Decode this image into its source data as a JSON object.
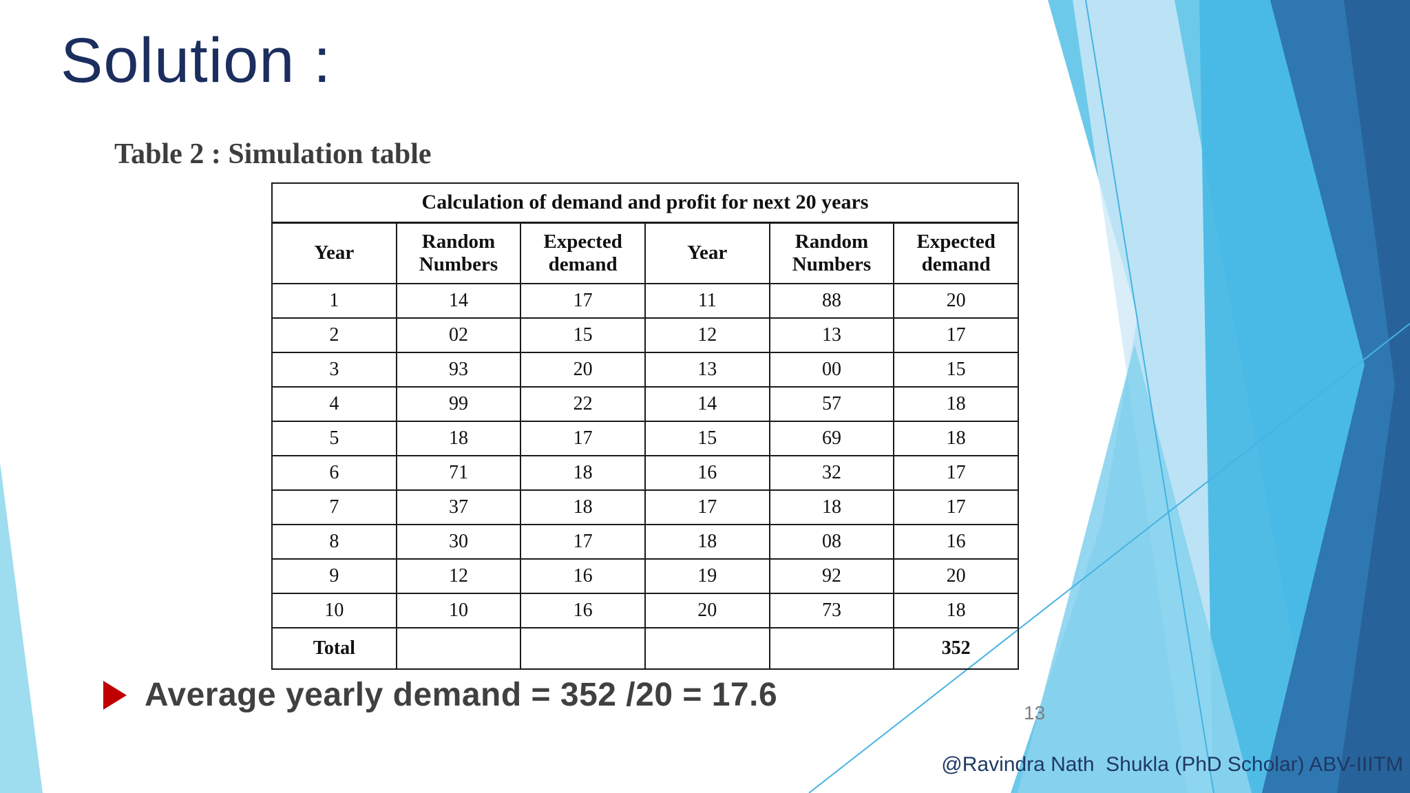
{
  "slide": {
    "title": "Solution :",
    "table_caption": "Table 2 : Simulation table",
    "bullet": {
      "icon": "right-triangle-bullet",
      "text": "Average yearly demand = 352 /20 = 17.6"
    },
    "page_number": "13",
    "footer": "@Ravindra Nath  Shukla (PhD Scholar) ABV-IIITM"
  },
  "table": {
    "title": "Calculation of demand and profit for next 20 years",
    "headers": [
      "Year",
      "Random Numbers",
      "Expected demand",
      "Year",
      "Random Numbers",
      "Expected demand"
    ],
    "rows": [
      [
        "1",
        "14",
        "17",
        "11",
        "88",
        "20"
      ],
      [
        "2",
        "02",
        "15",
        "12",
        "13",
        "17"
      ],
      [
        "3",
        "93",
        "20",
        "13",
        "00",
        "15"
      ],
      [
        "4",
        "99",
        "22",
        "14",
        "57",
        "18"
      ],
      [
        "5",
        "18",
        "17",
        "15",
        "69",
        "18"
      ],
      [
        "6",
        "71",
        "18",
        "16",
        "32",
        "17"
      ],
      [
        "7",
        "37",
        "18",
        "17",
        "18",
        "17"
      ],
      [
        "8",
        "30",
        "17",
        "18",
        "08",
        "16"
      ],
      [
        "9",
        "12",
        "16",
        "19",
        "92",
        "20"
      ],
      [
        "10",
        "10",
        "16",
        "20",
        "73",
        "18"
      ],
      [
        "Total",
        "",
        "",
        "",
        "",
        "352"
      ]
    ]
  },
  "colors": {
    "title_navy": "#1b2e5e",
    "footer_navy": "#1f3864",
    "bullet_red": "#c00000",
    "body_gray": "#404040",
    "decor_light_blue": "#6cc9ea",
    "decor_medium_blue": "#45b9e4",
    "decor_steel_blue": "#2f77b0",
    "decor_dark_blue": "#265f97",
    "decor_pale_blue": "#cfeaf8"
  }
}
